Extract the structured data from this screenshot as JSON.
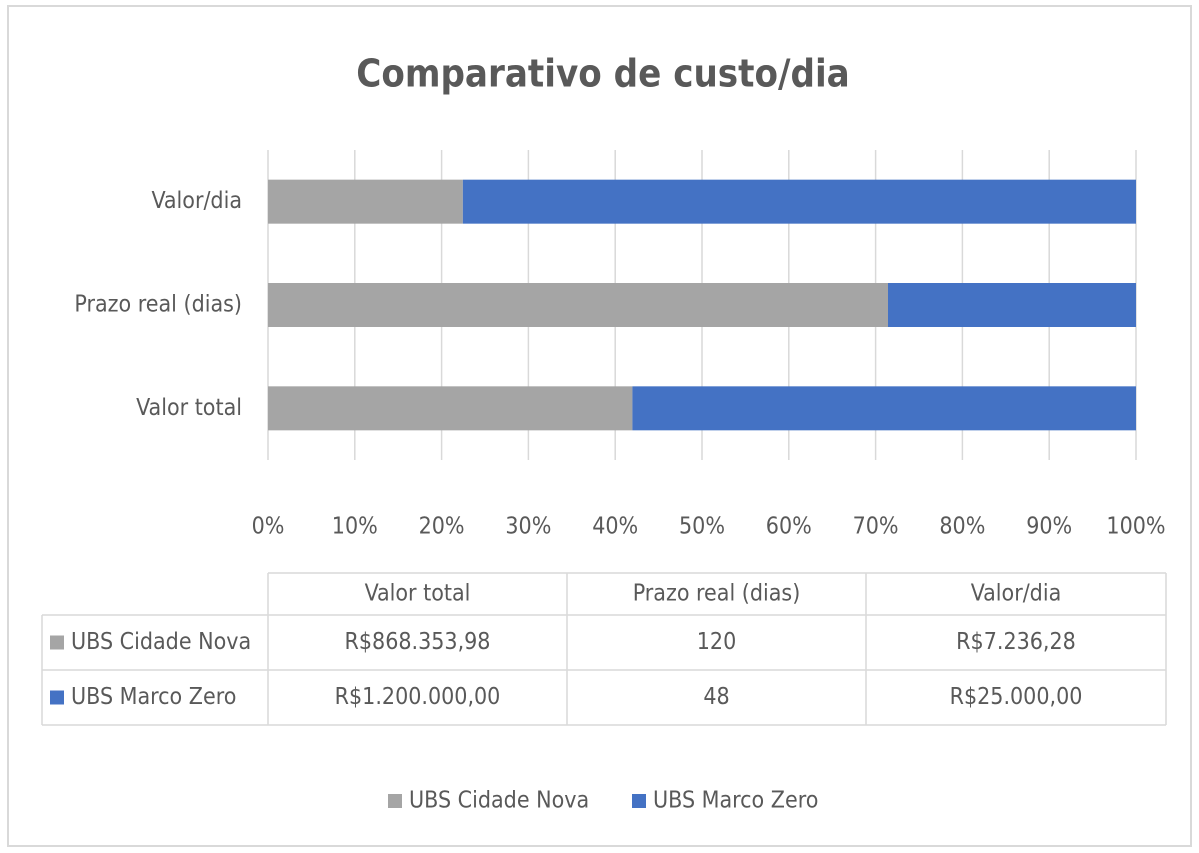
{
  "chart_data": {
    "type": "bar",
    "orientation": "horizontal",
    "stacking": "percent",
    "title": "Comparativo de custo/dia",
    "categories": [
      "Valor total",
      "Prazo real (dias)",
      "Valor/dia"
    ],
    "series": [
      {
        "name": "UBS Cidade Nova",
        "color": "#a5a5a5",
        "values": [
          868353.98,
          120,
          7236.28
        ],
        "value_labels": [
          "R$868.353,98",
          "120",
          "R$7.236,28"
        ]
      },
      {
        "name": "UBS Marco Zero",
        "color": "#4472c4",
        "values": [
          1200000,
          48,
          25000
        ],
        "value_labels": [
          "R$1.200.000,00",
          "48",
          "R$25.000,00"
        ]
      }
    ],
    "xlim": [
      0,
      100
    ],
    "xticks": [
      {
        "value": 0,
        "label": "0%"
      },
      {
        "value": 10,
        "label": "10%"
      },
      {
        "value": 20,
        "label": "20%"
      },
      {
        "value": 30,
        "label": "30%"
      },
      {
        "value": 40,
        "label": "40%"
      },
      {
        "value": 50,
        "label": "50%"
      },
      {
        "value": 60,
        "label": "60%"
      },
      {
        "value": 70,
        "label": "70%"
      },
      {
        "value": 80,
        "label": "80%"
      },
      {
        "value": 90,
        "label": "90%"
      },
      {
        "value": 100,
        "label": "100%"
      }
    ],
    "grid": true,
    "data_table": true,
    "legend": "bottom"
  }
}
